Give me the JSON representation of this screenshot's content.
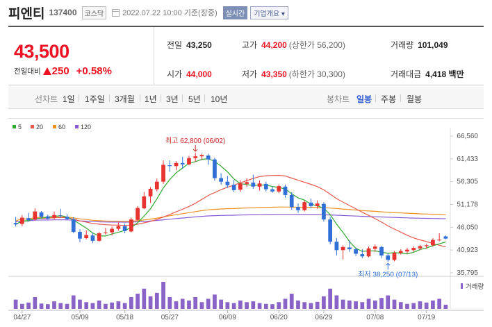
{
  "header": {
    "name": "피엔티",
    "code": "137400",
    "market": "코스닥",
    "datetime": "2022.07.22 10:00 기준(장중)",
    "realtime": "실시간",
    "company_info": "기업개요"
  },
  "quote": {
    "price": "43,500",
    "change_label": "전일대비",
    "change": "250",
    "change_pct": "+0.58%",
    "prev_close_label": "전일",
    "prev_close": "43,250",
    "high_label": "고가",
    "high": "44,200",
    "upper_limit": "(상한가 56,200)",
    "volume_label": "거래량",
    "volume": "101,049",
    "open_label": "시가",
    "open": "44,000",
    "low_label": "저가",
    "low": "43,350",
    "lower_limit": "(하한가 30,300)",
    "amount_label": "거래대금",
    "amount": "4,418 백만"
  },
  "periods": {
    "line_label": "선차트",
    "line_items": [
      "1일",
      "1주일",
      "3개월",
      "1년",
      "3년",
      "5년",
      "10년"
    ],
    "candle_label": "봉차트",
    "candle_items": [
      "일봉",
      "주봉",
      "월봉"
    ],
    "candle_selected": "일봉"
  },
  "colors": {
    "up": "#e8322f",
    "down": "#2f6fd6",
    "ma5": "#2ea82e",
    "ma20": "#e85a4f",
    "ma60": "#f0901e",
    "ma120": "#8a5ad6"
  },
  "chart_data": {
    "type": "candlestick",
    "legend": [
      {
        "name": "5",
        "color": "#2ea82e"
      },
      {
        "name": "20",
        "color": "#e85a4f"
      },
      {
        "name": "60",
        "color": "#f0901e"
      },
      {
        "name": "120",
        "color": "#8a5ad6"
      }
    ],
    "y_ticks": [
      "66,560",
      "61,433",
      "56,305",
      "51,178",
      "46,050",
      "40,923",
      "35,795"
    ],
    "ylim": [
      35795,
      66560
    ],
    "x_ticks": [
      "04/27",
      "05/09",
      "05/18",
      "05/27",
      "06/09",
      "06/20",
      "06/29",
      "07/08",
      "07/19"
    ],
    "volume_label": "거래량",
    "annotations": {
      "high_label": "최고 62,800 (06/02)",
      "low_label": "최저 38,250 (07/13)"
    },
    "candles": [
      [
        47000,
        48400,
        46200,
        46700
      ],
      [
        46800,
        48800,
        46300,
        48200
      ],
      [
        48100,
        49300,
        47300,
        47600
      ],
      [
        47800,
        50300,
        47500,
        49600
      ],
      [
        49400,
        49700,
        48100,
        48400
      ],
      [
        48500,
        48900,
        47800,
        48000
      ],
      [
        48200,
        49600,
        47700,
        48800
      ],
      [
        48700,
        50200,
        48200,
        48600
      ],
      [
        48400,
        49000,
        47600,
        47900
      ],
      [
        47800,
        48300,
        44700,
        45000
      ],
      [
        45000,
        45600,
        42700,
        43500
      ],
      [
        43600,
        45400,
        43300,
        44300
      ],
      [
        44200,
        44900,
        42500,
        43000
      ],
      [
        43000,
        45000,
        42800,
        44700
      ],
      [
        44800,
        45900,
        44400,
        44900
      ],
      [
        44900,
        46200,
        44200,
        45700
      ],
      [
        45700,
        47100,
        45300,
        46300
      ],
      [
        46300,
        46900,
        44700,
        45200
      ],
      [
        45100,
        48200,
        44900,
        47800
      ],
      [
        47700,
        50800,
        47500,
        50400
      ],
      [
        50300,
        54000,
        50100,
        53000
      ],
      [
        53000,
        55100,
        51500,
        54700
      ],
      [
        54600,
        57000,
        54100,
        56300
      ],
      [
        56300,
        61100,
        55800,
        60100
      ],
      [
        60000,
        61100,
        58500,
        59800
      ],
      [
        59800,
        60900,
        58900,
        60500
      ],
      [
        60500,
        61900,
        59200,
        60200
      ],
      [
        60200,
        62100,
        60000,
        61600
      ],
      [
        61600,
        62800,
        60800,
        62000
      ],
      [
        62000,
        62600,
        61200,
        62300
      ],
      [
        62200,
        62600,
        60100,
        61300
      ],
      [
        61300,
        61700,
        56500,
        57100
      ],
      [
        57100,
        58200,
        55600,
        56300
      ],
      [
        56300,
        57600,
        54900,
        55500
      ],
      [
        55600,
        56700,
        54000,
        54400
      ],
      [
        54500,
        56600,
        54000,
        55900
      ],
      [
        55800,
        57100,
        55100,
        56200
      ],
      [
        56100,
        57900,
        54700,
        55200
      ],
      [
        55200,
        56600,
        54300,
        55900
      ],
      [
        55800,
        56300,
        54100,
        54600
      ],
      [
        54600,
        55300,
        53800,
        54100
      ],
      [
        54100,
        55700,
        53700,
        55300
      ],
      [
        55200,
        55600,
        52700,
        53300
      ],
      [
        53300,
        53900,
        50000,
        50600
      ],
      [
        50600,
        51400,
        49300,
        49900
      ],
      [
        49900,
        52100,
        49600,
        51700
      ],
      [
        51600,
        52500,
        50300,
        50800
      ],
      [
        50800,
        52100,
        50200,
        51400
      ],
      [
        51300,
        51700,
        47300,
        47800
      ],
      [
        47800,
        48400,
        42200,
        42800
      ],
      [
        42800,
        43600,
        39700,
        40900
      ],
      [
        40900,
        42000,
        38800,
        41600
      ],
      [
        41500,
        43100,
        40500,
        41100
      ],
      [
        41100,
        41500,
        39600,
        40100
      ],
      [
        40000,
        41100,
        39100,
        39500
      ],
      [
        39500,
        41700,
        39300,
        41300
      ],
      [
        41200,
        42200,
        40500,
        41700
      ],
      [
        41600,
        41900,
        39100,
        39700
      ],
      [
        39700,
        40200,
        38250,
        38700
      ],
      [
        38700,
        40700,
        38400,
        40300
      ],
      [
        40300,
        41100,
        39900,
        40700
      ],
      [
        40600,
        41400,
        40200,
        41000
      ],
      [
        40900,
        41800,
        40500,
        41400
      ],
      [
        41300,
        42100,
        40900,
        41800
      ],
      [
        41800,
        42300,
        41200,
        42000
      ],
      [
        42000,
        43600,
        41700,
        43200
      ],
      [
        43200,
        44700,
        42900,
        43250
      ],
      [
        44000,
        44200,
        43350,
        43500
      ]
    ],
    "volumes": [
      55,
      30,
      38,
      70,
      32,
      28,
      45,
      35,
      30,
      80,
      55,
      40,
      35,
      50,
      30,
      38,
      45,
      35,
      70,
      90,
      120,
      75,
      95,
      160,
      70,
      45,
      60,
      50,
      70,
      40,
      60,
      85,
      55,
      40,
      35,
      50,
      40,
      45,
      35,
      30,
      28,
      40,
      60,
      90,
      50,
      40,
      35,
      42,
      75,
      120,
      80,
      55,
      50,
      45,
      40,
      60,
      50,
      65,
      80,
      55,
      40,
      30,
      35,
      45,
      38,
      50,
      60,
      25
    ]
  }
}
